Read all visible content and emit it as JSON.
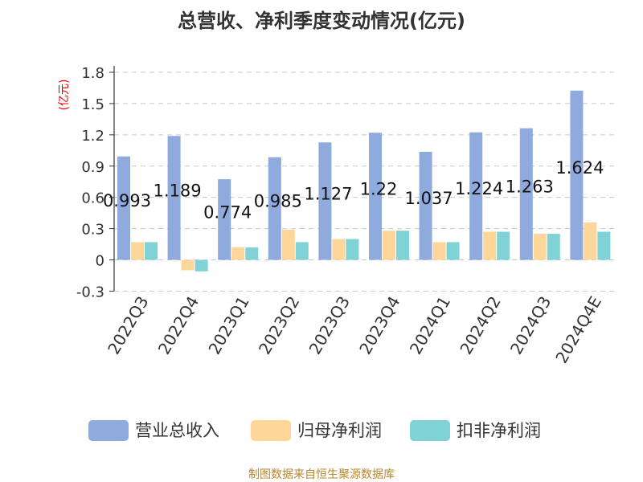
{
  "chart_data": {
    "type": "bar",
    "title": "总营收、净利季度变动情况(亿元)",
    "unit_label": "(亿元)",
    "categories": [
      "2022Q3",
      "2022Q4",
      "2023Q1",
      "2023Q2",
      "2023Q3",
      "2023Q4",
      "2024Q1",
      "2024Q2",
      "2024Q3",
      "2024Q4E"
    ],
    "series": [
      {
        "name": "营业总收入",
        "color": "#8faadc",
        "values": [
          0.993,
          1.189,
          0.774,
          0.985,
          1.127,
          1.22,
          1.037,
          1.224,
          1.263,
          1.624
        ]
      },
      {
        "name": "归母净利润",
        "color": "#ffd699",
        "values": [
          0.17,
          -0.1,
          0.12,
          0.29,
          0.2,
          0.28,
          0.17,
          0.27,
          0.25,
          0.36
        ]
      },
      {
        "name": "扣非净利润",
        "color": "#7fd3d6",
        "values": [
          0.17,
          -0.11,
          0.12,
          0.17,
          0.2,
          0.28,
          0.17,
          0.27,
          0.25,
          0.27
        ]
      }
    ],
    "data_labels": [
      "0.993",
      "1.189",
      "0.774",
      "0.985",
      "1.127",
      "1.22",
      "1.037",
      "1.224",
      "1.263",
      "1.624"
    ],
    "y_ticks": [
      "1.8",
      "1.5",
      "1.2",
      "0.9",
      "0.6",
      "0.3",
      "0",
      "-0.3"
    ],
    "ylim": [
      -0.3,
      1.8
    ],
    "grid": true,
    "legend_position": "bottom"
  },
  "footer": {
    "source": "制图数据来自恒生聚源数据库"
  }
}
